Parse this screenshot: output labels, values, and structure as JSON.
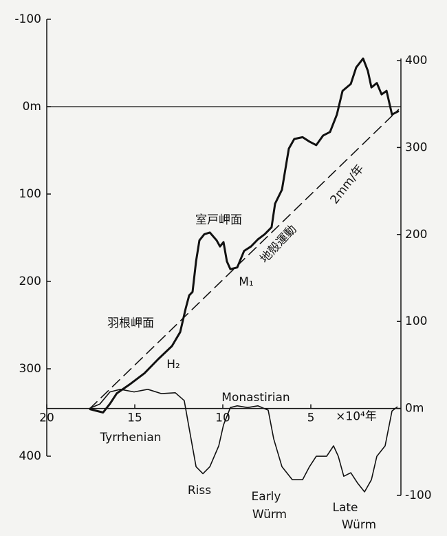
{
  "chart_data": {
    "type": "line",
    "xlim": [
      20,
      0
    ],
    "xticks": [
      20,
      15,
      10,
      5
    ],
    "x_unit": "×10⁴年",
    "ylim": [
      400,
      -100
    ],
    "yticks": [
      -100,
      {
        "value": 0,
        "label": "0m"
      },
      100,
      200,
      300,
      400
    ],
    "y2lim": [
      -100,
      400
    ],
    "y2ticks": [
      400,
      300,
      200,
      100,
      {
        "value": 0,
        "label": "0m"
      },
      -100
    ],
    "series": [
      {
        "axis": "y",
        "color": "#111",
        "width": 3,
        "dash": false,
        "x": [
          17.58,
          17.19,
          16.8,
          16.41,
          16.02,
          15.23,
          14.45,
          13.67,
          12.89,
          12.42,
          12.11,
          11.91,
          11.72,
          11.52,
          11.33,
          11.05,
          10.74,
          10.35,
          10.16,
          9.96,
          9.77,
          9.57,
          9.18,
          8.79,
          8.4,
          8.01,
          7.62,
          7.23,
          7.03,
          6.64,
          6.45,
          6.25,
          5.94,
          5.47,
          5.08,
          4.69,
          4.3,
          3.91,
          3.52,
          3.2,
          2.73,
          2.42,
          2.03,
          1.76,
          1.56,
          1.25,
          0.98,
          0.7,
          0.39,
          0.0
        ],
        "values": [
          346,
          348,
          350,
          340,
          328,
          317,
          305,
          289,
          274,
          258,
          231,
          216,
          212,
          177,
          153,
          146,
          144,
          153,
          160,
          155,
          177,
          186,
          184,
          165,
          160,
          152,
          146,
          138,
          111,
          95,
          72,
          48,
          37,
          35,
          40,
          44,
          33,
          29,
          9,
          -18,
          -26,
          -45,
          -55,
          -41,
          -22,
          -27,
          -14,
          -18,
          9,
          5
        ]
      },
      {
        "axis": "y",
        "color": "#111",
        "width": 1.6,
        "dash": true,
        "x": [
          17.58,
          0.0
        ],
        "values": [
          346,
          3
        ]
      },
      {
        "axis": "y2",
        "color": "#111",
        "width": 1.6,
        "dash": false,
        "x": [
          17.58,
          16.99,
          16.41,
          15.82,
          15.04,
          14.26,
          13.48,
          12.7,
          12.19,
          11.91,
          11.52,
          11.13,
          10.74,
          10.23,
          9.96,
          9.57,
          9.18,
          8.59,
          8.01,
          7.42,
          7.11,
          6.64,
          6.05,
          5.47,
          5.08,
          4.69,
          4.1,
          3.71,
          3.44,
          3.13,
          2.73,
          2.34,
          1.95,
          1.56,
          1.25,
          0.78,
          0.39,
          0.08
        ],
        "values": [
          0,
          5,
          19,
          22,
          19,
          22,
          17,
          18,
          9,
          -23,
          -67,
          -75,
          -67,
          -43,
          -19,
          1,
          3,
          1,
          3,
          -2,
          -35,
          -67,
          -82,
          -82,
          -67,
          -55,
          -55,
          -43,
          -55,
          -78,
          -74,
          -86,
          -96,
          -82,
          -55,
          -43,
          -3,
          2
        ]
      }
    ],
    "annotations": [
      "室戸岬面",
      "M₁",
      "羽根岬面",
      "H₂",
      "地殻運動",
      "2mm/年",
      "Monastirian",
      "Tyrrhenian",
      "Riss",
      "Early",
      "Würm",
      "Late",
      "Würm"
    ]
  }
}
